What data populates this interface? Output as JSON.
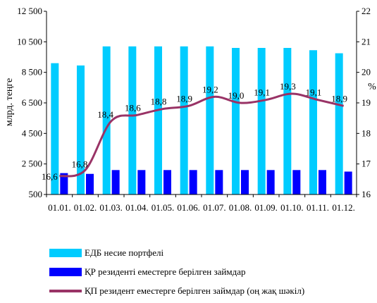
{
  "chart_data": {
    "type": "bar",
    "categories": [
      "01.01.",
      "01.02.",
      "01.03.",
      "01.04.",
      "01.05.",
      "01.06.",
      "01.07.",
      "01.08.",
      "01.09.",
      "01.10.",
      "01.11.",
      "01.12."
    ],
    "series": [
      {
        "name": "ЕДБ несие портфелі",
        "type": "bar",
        "axis": "left",
        "color": "#00CCFF",
        "values": [
          9100,
          8950,
          10200,
          10200,
          10200,
          10200,
          10200,
          10100,
          10100,
          10100,
          9950,
          9750
        ]
      },
      {
        "name": "ҚР резиденті еместерге берілген займдар",
        "type": "bar",
        "axis": "left",
        "color": "#0000FF",
        "values": [
          1900,
          1850,
          2100,
          2100,
          2100,
          2100,
          2100,
          2100,
          2100,
          2100,
          2100,
          2000
        ]
      },
      {
        "name": "ҚП резидент еместерге берілген займдар (оң жақ шәкіл)",
        "type": "line",
        "axis": "right",
        "color": "#993366",
        "values": [
          16.6,
          16.8,
          18.4,
          18.6,
          18.8,
          18.9,
          19.2,
          19.0,
          19.1,
          19.3,
          19.1,
          18.9
        ],
        "data_labels": [
          "16,6",
          "16,8",
          "18,4",
          "18,6",
          "18,8",
          "18,9",
          "19,2",
          "19,0",
          "19,1",
          "19,3",
          "19,1",
          "18,9"
        ]
      }
    ],
    "left_axis": {
      "label": "млрд. теңге",
      "ylim": [
        500,
        12500
      ],
      "ticks": [
        500,
        2500,
        4500,
        6500,
        8500,
        10500,
        12500
      ],
      "tick_labels": [
        "500",
        "2 500",
        "4 500",
        "6 500",
        "8 500",
        "10 500",
        "12 500"
      ]
    },
    "right_axis": {
      "label": "%",
      "ylim": [
        16,
        22
      ],
      "ticks": [
        16,
        17,
        18,
        19,
        20,
        21,
        22
      ],
      "tick_labels": [
        "16",
        "17",
        "18",
        "19",
        "20",
        "21",
        "22"
      ]
    },
    "grid": false,
    "legend_position": "bottom"
  }
}
